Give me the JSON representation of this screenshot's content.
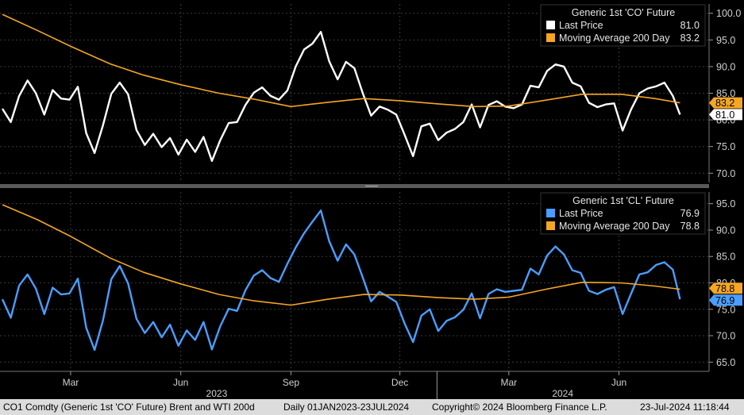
{
  "colors": {
    "background": "#000000",
    "grid": "#3a3a3a",
    "brent": "#ffffff",
    "wti": "#4a9eff",
    "moving_average": "#f5a623",
    "footer_bg": "#dcdcdc"
  },
  "footer": {
    "security": "CO1 Comdty (Generic 1st 'CO' Future) Brent and WTI 200d",
    "range": "Daily 01JAN2023-23JUL2024",
    "copyright": "Copyright© 2024 Bloomberg Finance L.P.",
    "timestamp": "23-Jul-2024 11:18:44"
  },
  "chart_data": [
    {
      "type": "line",
      "title": "",
      "legend_placement": "top-right",
      "legend": {
        "title": "Generic 1st 'CO' Future",
        "items": [
          {
            "label": "Last Price",
            "value": "81.0"
          },
          {
            "label": "Moving Average 200 Day",
            "value": "83.2"
          }
        ]
      },
      "last_value_tags": [
        "83.2",
        "81.0"
      ],
      "yaxis": {
        "side": "right",
        "ticks": [
          "100.0",
          "95.0",
          "90.0",
          "85.0",
          "80.0",
          "75.0",
          "70.0"
        ],
        "ylim": [
          69,
          101
        ]
      },
      "grid": true,
      "series": [
        {
          "name": "Last Price",
          "color": "#ffffff",
          "x": [
            "2023-01-03",
            "2023-01-10",
            "2023-01-17",
            "2023-01-24",
            "2023-01-31",
            "2023-02-07",
            "2023-02-14",
            "2023-02-21",
            "2023-02-28",
            "2023-03-07",
            "2023-03-14",
            "2023-03-21",
            "2023-03-28",
            "2023-04-04",
            "2023-04-11",
            "2023-04-18",
            "2023-04-25",
            "2023-05-02",
            "2023-05-09",
            "2023-05-16",
            "2023-05-23",
            "2023-05-30",
            "2023-06-06",
            "2023-06-13",
            "2023-06-20",
            "2023-06-27",
            "2023-07-04",
            "2023-07-11",
            "2023-07-18",
            "2023-07-25",
            "2023-08-01",
            "2023-08-08",
            "2023-08-15",
            "2023-08-22",
            "2023-08-29",
            "2023-09-05",
            "2023-09-12",
            "2023-09-19",
            "2023-09-26",
            "2023-10-03",
            "2023-10-10",
            "2023-10-17",
            "2023-10-24",
            "2023-10-31",
            "2023-11-07",
            "2023-11-14",
            "2023-11-21",
            "2023-11-28",
            "2023-12-05",
            "2023-12-12",
            "2023-12-19",
            "2023-12-26",
            "2024-01-02",
            "2024-01-09",
            "2024-01-16",
            "2024-01-23",
            "2024-01-30",
            "2024-02-06",
            "2024-02-13",
            "2024-02-20",
            "2024-02-27",
            "2024-03-05",
            "2024-03-12",
            "2024-03-19",
            "2024-03-26",
            "2024-04-02",
            "2024-04-09",
            "2024-04-16",
            "2024-04-23",
            "2024-04-30",
            "2024-05-07",
            "2024-05-14",
            "2024-05-21",
            "2024-05-28",
            "2024-06-04",
            "2024-06-11",
            "2024-06-18",
            "2024-06-25",
            "2024-07-02",
            "2024-07-09",
            "2024-07-16",
            "2024-07-22"
          ],
          "y": [
            82.1,
            79.6,
            84.5,
            87.4,
            85.0,
            81.0,
            85.6,
            84.0,
            83.8,
            86.2,
            77.5,
            73.8,
            79.0,
            84.9,
            87.0,
            84.8,
            78.1,
            75.3,
            77.4,
            74.9,
            76.6,
            73.5,
            76.3,
            74.0,
            76.8,
            72.3,
            76.2,
            79.4,
            79.6,
            82.8,
            85.1,
            86.1,
            84.5,
            83.8,
            85.5,
            90.0,
            93.2,
            94.3,
            96.5,
            91.0,
            87.6,
            90.9,
            89.7,
            85.0,
            80.8,
            82.5,
            81.9,
            81.0,
            77.2,
            73.2,
            78.8,
            79.3,
            76.2,
            77.6,
            78.3,
            79.6,
            82.9,
            78.6,
            82.8,
            83.5,
            82.5,
            82.2,
            82.9,
            86.4,
            86.1,
            89.2,
            90.4,
            90.0,
            87.0,
            86.3,
            83.2,
            82.4,
            82.9,
            83.1,
            78.0,
            81.9,
            85.0,
            85.9,
            86.3,
            87.0,
            84.5,
            81.0
          ]
        },
        {
          "name": "Moving Average 200 Day",
          "color": "#f5a623",
          "x": [
            "2023-01-03",
            "2023-02-01",
            "2023-03-01",
            "2023-04-03",
            "2023-05-01",
            "2023-06-01",
            "2023-07-03",
            "2023-08-01",
            "2023-09-01",
            "2023-10-02",
            "2023-11-01",
            "2023-12-01",
            "2024-01-02",
            "2024-02-01",
            "2024-03-01",
            "2024-04-01",
            "2024-05-01",
            "2024-06-03",
            "2024-07-01",
            "2024-07-22"
          ],
          "y": [
            99.8,
            96.8,
            93.8,
            90.5,
            88.4,
            86.6,
            85.0,
            83.9,
            82.5,
            83.3,
            84.0,
            83.6,
            83.0,
            82.5,
            82.6,
            83.7,
            84.8,
            84.8,
            84.0,
            83.2
          ]
        }
      ]
    },
    {
      "type": "line",
      "title": "",
      "legend_placement": "top-right",
      "legend": {
        "title": "Generic 1st 'CL' Future",
        "items": [
          {
            "label": "Last Price",
            "value": "76.9"
          },
          {
            "label": "Moving Average 200 Day",
            "value": "78.8"
          }
        ]
      },
      "last_value_tags": [
        "78.8",
        "76.9"
      ],
      "yaxis": {
        "side": "right",
        "ticks": [
          "95.0",
          "90.0",
          "85.0",
          "80.0",
          "75.0",
          "70.0",
          "65.0"
        ],
        "ylim": [
          64,
          96
        ]
      },
      "grid": true,
      "xaxis": {
        "month_labels": [
          "Mar",
          "Jun",
          "Sep",
          "Dec",
          "Mar",
          "Jun"
        ],
        "month_dates": [
          "2023-03-01",
          "2023-06-01",
          "2023-09-01",
          "2023-12-01",
          "2024-03-01",
          "2024-06-01"
        ],
        "year_labels": [
          "2023",
          "2024"
        ],
        "year_dates": [
          "2023-07-01",
          "2024-04-15"
        ],
        "xlim": [
          "2023-01-01",
          "2024-07-31"
        ]
      },
      "series": [
        {
          "name": "Last Price",
          "color": "#4a9eff",
          "x": [
            "2023-01-03",
            "2023-01-10",
            "2023-01-17",
            "2023-01-24",
            "2023-01-31",
            "2023-02-07",
            "2023-02-14",
            "2023-02-21",
            "2023-02-28",
            "2023-03-07",
            "2023-03-14",
            "2023-03-21",
            "2023-03-28",
            "2023-04-04",
            "2023-04-11",
            "2023-04-18",
            "2023-04-25",
            "2023-05-02",
            "2023-05-09",
            "2023-05-16",
            "2023-05-23",
            "2023-05-30",
            "2023-06-06",
            "2023-06-13",
            "2023-06-20",
            "2023-06-27",
            "2023-07-04",
            "2023-07-11",
            "2023-07-18",
            "2023-07-25",
            "2023-08-01",
            "2023-08-08",
            "2023-08-15",
            "2023-08-22",
            "2023-08-29",
            "2023-09-05",
            "2023-09-12",
            "2023-09-19",
            "2023-09-26",
            "2023-10-03",
            "2023-10-10",
            "2023-10-17",
            "2023-10-24",
            "2023-10-31",
            "2023-11-07",
            "2023-11-14",
            "2023-11-21",
            "2023-11-28",
            "2023-12-05",
            "2023-12-12",
            "2023-12-19",
            "2023-12-26",
            "2024-01-02",
            "2024-01-09",
            "2024-01-16",
            "2024-01-23",
            "2024-01-30",
            "2024-02-06",
            "2024-02-13",
            "2024-02-20",
            "2024-02-27",
            "2024-03-05",
            "2024-03-12",
            "2024-03-19",
            "2024-03-26",
            "2024-04-02",
            "2024-04-09",
            "2024-04-16",
            "2024-04-23",
            "2024-04-30",
            "2024-05-07",
            "2024-05-14",
            "2024-05-21",
            "2024-05-28",
            "2024-06-04",
            "2024-06-11",
            "2024-06-18",
            "2024-06-25",
            "2024-07-02",
            "2024-07-09",
            "2024-07-16",
            "2024-07-22"
          ],
          "y": [
            76.9,
            73.4,
            79.5,
            81.6,
            78.9,
            74.1,
            79.1,
            77.8,
            78.0,
            80.8,
            71.5,
            67.3,
            72.9,
            80.7,
            83.2,
            79.9,
            73.2,
            70.5,
            72.6,
            69.7,
            72.1,
            68.1,
            71.0,
            69.2,
            72.6,
            67.4,
            71.8,
            75.1,
            74.7,
            78.6,
            81.4,
            82.4,
            80.9,
            80.2,
            83.6,
            86.7,
            89.4,
            91.6,
            93.7,
            87.9,
            84.2,
            87.3,
            85.4,
            81.0,
            76.5,
            78.3,
            77.4,
            76.4,
            72.3,
            68.8,
            73.8,
            75.0,
            70.9,
            72.8,
            73.5,
            74.9,
            78.0,
            73.3,
            77.9,
            78.8,
            78.3,
            78.5,
            78.7,
            82.7,
            81.6,
            85.2,
            86.9,
            85.4,
            82.4,
            81.9,
            78.5,
            77.9,
            78.7,
            79.2,
            74.1,
            77.9,
            81.6,
            82.0,
            83.4,
            83.9,
            82.5,
            76.9
          ]
        },
        {
          "name": "Moving Average 200 Day",
          "color": "#f5a623",
          "x": [
            "2023-01-03",
            "2023-02-01",
            "2023-03-01",
            "2023-04-03",
            "2023-05-01",
            "2023-06-01",
            "2023-07-03",
            "2023-08-01",
            "2023-09-01",
            "2023-10-02",
            "2023-11-01",
            "2023-12-01",
            "2024-01-02",
            "2024-02-01",
            "2024-03-01",
            "2024-04-01",
            "2024-05-01",
            "2024-06-03",
            "2024-07-01",
            "2024-07-22"
          ],
          "y": [
            94.8,
            92.0,
            88.8,
            84.7,
            82.0,
            79.8,
            77.8,
            76.6,
            75.8,
            76.9,
            77.8,
            77.7,
            77.2,
            76.9,
            77.3,
            78.8,
            80.1,
            80.0,
            79.4,
            78.8
          ]
        }
      ]
    }
  ]
}
